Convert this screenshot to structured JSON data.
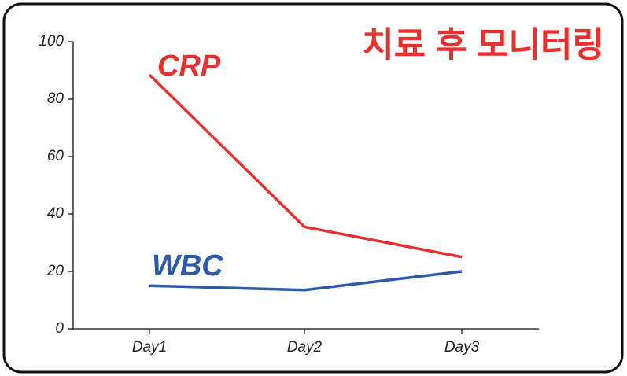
{
  "chart_data": {
    "type": "line",
    "title": "치료 후 모니터링",
    "categories": [
      "Day1",
      "Day2",
      "Day3"
    ],
    "series": [
      {
        "name": "CRP",
        "color": "#e8302e",
        "values": [
          88.5,
          35.5,
          25
        ]
      },
      {
        "name": "WBC",
        "color": "#2b5ba8",
        "values": [
          15,
          13.5,
          20
        ]
      }
    ],
    "ylim": [
      0,
      100
    ],
    "yticks": [
      0,
      20,
      40,
      60,
      80,
      100
    ]
  }
}
